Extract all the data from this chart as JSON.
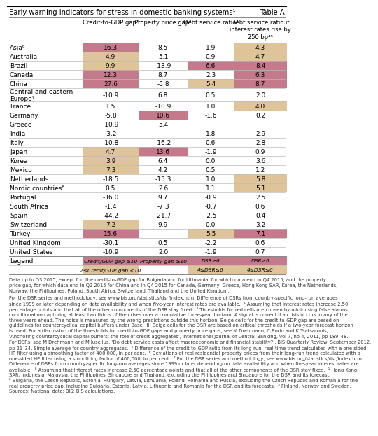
{
  "title": "Early warning indicators for stress in domestic banking systems¹",
  "table_label": "Table A",
  "col_headers": [
    "Credit-to-GDP gap²",
    "Property price gap³",
    "Debt service ratio⁴",
    "Debt service ratio if\ninterest rates rise by\n250 bp⁴⁵"
  ],
  "rows": [
    {
      "name": "Asia⁶",
      "vals": [
        16.3,
        8.5,
        1.9,
        4.3
      ]
    },
    {
      "name": "Australia",
      "vals": [
        4.9,
        5.1,
        0.9,
        4.7
      ]
    },
    {
      "name": "Brazil",
      "vals": [
        9.9,
        -13.9,
        6.6,
        8.4
      ]
    },
    {
      "name": "Canada",
      "vals": [
        12.3,
        8.7,
        2.3,
        6.3
      ]
    },
    {
      "name": "China",
      "vals": [
        27.6,
        -5.8,
        5.4,
        8.7
      ]
    },
    {
      "name": "Central and eastern\nEurope⁷",
      "vals": [
        -10.9,
        6.8,
        0.5,
        2.0
      ]
    },
    {
      "name": "France",
      "vals": [
        1.5,
        -10.9,
        1.0,
        4.0
      ]
    },
    {
      "name": "Germany",
      "vals": [
        -5.8,
        10.6,
        -1.6,
        0.2
      ]
    },
    {
      "name": "Greece",
      "vals": [
        -10.9,
        5.4,
        null,
        null
      ]
    },
    {
      "name": "India",
      "vals": [
        -3.2,
        null,
        1.8,
        2.9
      ]
    },
    {
      "name": "Italy",
      "vals": [
        -10.8,
        -16.2,
        0.6,
        2.8
      ]
    },
    {
      "name": "Japan",
      "vals": [
        4.7,
        13.6,
        -1.9,
        0.9
      ]
    },
    {
      "name": "Korea",
      "vals": [
        3.9,
        6.4,
        0.0,
        3.6
      ]
    },
    {
      "name": "Mexico",
      "vals": [
        7.3,
        4.2,
        0.5,
        1.2
      ]
    },
    {
      "name": "Netherlands",
      "vals": [
        -18.5,
        -15.3,
        1.0,
        5.8
      ]
    },
    {
      "name": "Nordic countries⁸",
      "vals": [
        0.5,
        2.6,
        1.1,
        5.1
      ]
    },
    {
      "name": "Portugal",
      "vals": [
        -36.0,
        9.7,
        -0.9,
        2.5
      ]
    },
    {
      "name": "South Africa",
      "vals": [
        -1.4,
        -7.3,
        -0.7,
        0.6
      ]
    },
    {
      "name": "Spain",
      "vals": [
        -44.2,
        -21.7,
        -2.5,
        0.4
      ]
    },
    {
      "name": "Switzerland",
      "vals": [
        7.2,
        9.9,
        0.0,
        3.2
      ]
    },
    {
      "name": "Turkey",
      "vals": [
        15.6,
        null,
        5.5,
        7.1
      ]
    },
    {
      "name": "United Kingdom",
      "vals": [
        -30.1,
        0.5,
        -2.2,
        0.6
      ]
    },
    {
      "name": "United States",
      "vals": [
        -10.9,
        2.0,
        -1.9,
        0.7
      ]
    }
  ],
  "legend_row0": [
    "Credit/GDP gap ≥10",
    "Property gap ≥10",
    "DSR≥6",
    "DSR≥6"
  ],
  "legend_row1": [
    "2≤Credit/GDP gap <10",
    "",
    "4≤DSR≤6",
    "4≤DSR≤6"
  ],
  "footnote_lines": [
    "Data up to Q3 2015, except for: the credit-to-GDP gap for Bulgaria and for Lithuania, for which data end in Q4 2015; and the property",
    "price gap, for which data end in Q2 2015 for China and in Q4 2015 for Canada, Germany, Greece, Hong Kong SAR, Korea, the Netherlands,",
    "Norway, the Philippines, Poland, South Africa, Switzerland, Thailand and the United Kingdom."
  ],
  "footnote2_lines": [
    "For the DSR series and methodology, see www.bis.org/statistics/dsr/index.htm. Difference of DSRs from country-specific long-run averages",
    "since 1999 or later depending on data availability and when five-year interest rates are available.  ² Assuming that interest rates increase 2.50",
    "percentage points and that all of the other components of the DSR stay fixed.  ³ Thresholds for red cells are chosen by minimising false alarms",
    "conditional on capturing at least two thirds of the crises over a cumulative three-year horizon. A signal is correct if a crisis occurs in any of the",
    "three years ahead. The noise is measured by the wrong predictions outside this horizon. Beige cells for the credit-to-GDP gap are based on",
    "guidelines for countercyclical capital buffers under Basel III. Beige cells for the DSR are based on critical thresholds if a two-year forecast horizon",
    "is used. For a discussion of the thresholds for credit-to-GDP gaps and property price gaps, see M Drehmann, C Borio and K Tsatsaronis,",
    "‘Anchoring countercyclical capital buffers: the role of credit aggregates’, International Journal of Central Banking, vol 7, no 4, 2011, pp 189–48.",
    "For DSRs, see M Drehmann and M Juselius, ‘Do debt service costs affect macroeconomic and financial stability?’, BIS Quarterly Review, September 2012,",
    "pp 21–34. Simple average for country aggregates.  ⁵ Difference of the credit-to-GDP ratio from its long-run, real-time trend calculated with a one-sided",
    "HP filter using a smoothing factor of 400,000, in per cent.  ⁶ Deviations of real residential property prices from their long-run trend calculated with a",
    "one-sided HP filter using a smoothing factor of 400,000, in per cent.  ⁷ For the DSR series and methodology, see www.bis.org/statistics/dsr/index.htm.",
    "Difference of DSRs from country-specific long-run averages since 1999 or later depending on data availability and when five-year interest rates are",
    "available.  ⁸ Assuming that interest rates increase 2.50 percentage points and that all of the other components of the DSR stay fixed.  ¹ Hong Kong",
    "SAR, Indonesia, Malaysia, the Philippines, Singapore and Thailand, excluding the Philippines and Singapore for the DSR and its forecast.",
    "² Bulgaria, the Czech Republic, Estonia, Hungary, Latvia, Lithuania, Poland, Romania and Russia, excluding the Czech Republic and Romania for the",
    "real property price gap, including Bulgaria, Estonia, Latvia, Lithuania and Romania for the DSR and its forecasts.  ³ Finland, Norway and Sweden.",
    "Sources: National data; BIS; BIS calculations."
  ],
  "color_red": "#c47a8a",
  "color_tan": "#dfc49a",
  "thresholds": {
    "credit_strong": 10,
    "credit_light_lo": 2,
    "property_strong": 10,
    "dsr_strong": 6,
    "dsr_light_lo": 4
  }
}
